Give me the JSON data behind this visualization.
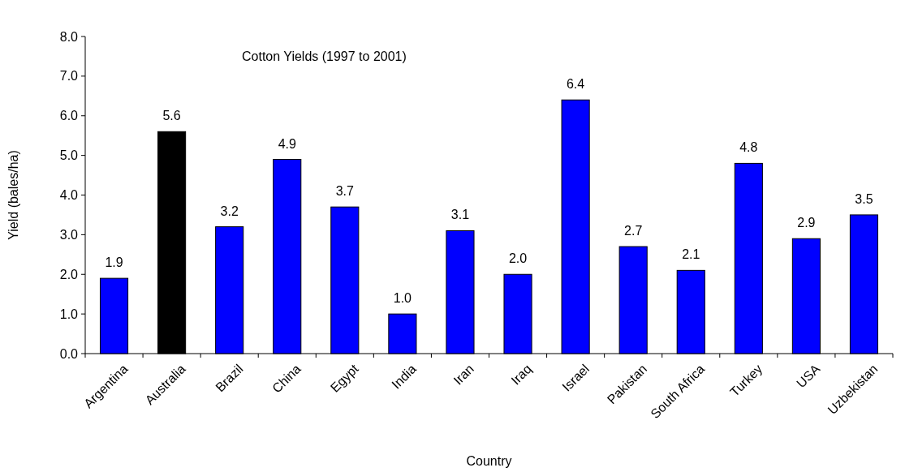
{
  "chart_data": {
    "type": "bar",
    "title": "Cotton Yields (1997 to 2001)",
    "xlabel": "Country",
    "ylabel": "Yield (bales/ha)",
    "categories": [
      "Argentina",
      "Australia",
      "Brazil",
      "China",
      "Egypt",
      "India",
      "Iran",
      "Iraq",
      "Israel",
      "Pakistan",
      "South Africa",
      "Turkey",
      "USA",
      "Uzbekistan"
    ],
    "values": [
      1.9,
      5.6,
      3.2,
      4.9,
      3.7,
      1.0,
      3.1,
      2.0,
      6.4,
      2.7,
      2.1,
      4.8,
      2.9,
      3.5
    ],
    "value_labels": [
      "1.9",
      "5.6",
      "3.2",
      "4.9",
      "3.7",
      "1.0",
      "3.1",
      "2.0",
      "6.4",
      "2.7",
      "2.1",
      "4.8",
      "2.9",
      "3.5"
    ],
    "colors": [
      "#0000ff",
      "#000000",
      "#0000ff",
      "#0000ff",
      "#0000ff",
      "#0000ff",
      "#0000ff",
      "#0000ff",
      "#0000ff",
      "#0000ff",
      "#0000ff",
      "#0000ff",
      "#0000ff",
      "#0000ff"
    ],
    "ylim": [
      0,
      8
    ],
    "yticks": [
      {
        "value": 0,
        "label": "0.0"
      },
      {
        "value": 1,
        "label": "1.0"
      },
      {
        "value": 2,
        "label": "2.0"
      },
      {
        "value": 3,
        "label": "3.0"
      },
      {
        "value": 4,
        "label": "4.0"
      },
      {
        "value": 5,
        "label": "5.0"
      },
      {
        "value": 6,
        "label": "6.0"
      },
      {
        "value": 7,
        "label": "7.0"
      },
      {
        "value": 8,
        "label": "8.0"
      }
    ],
    "grid": false
  }
}
